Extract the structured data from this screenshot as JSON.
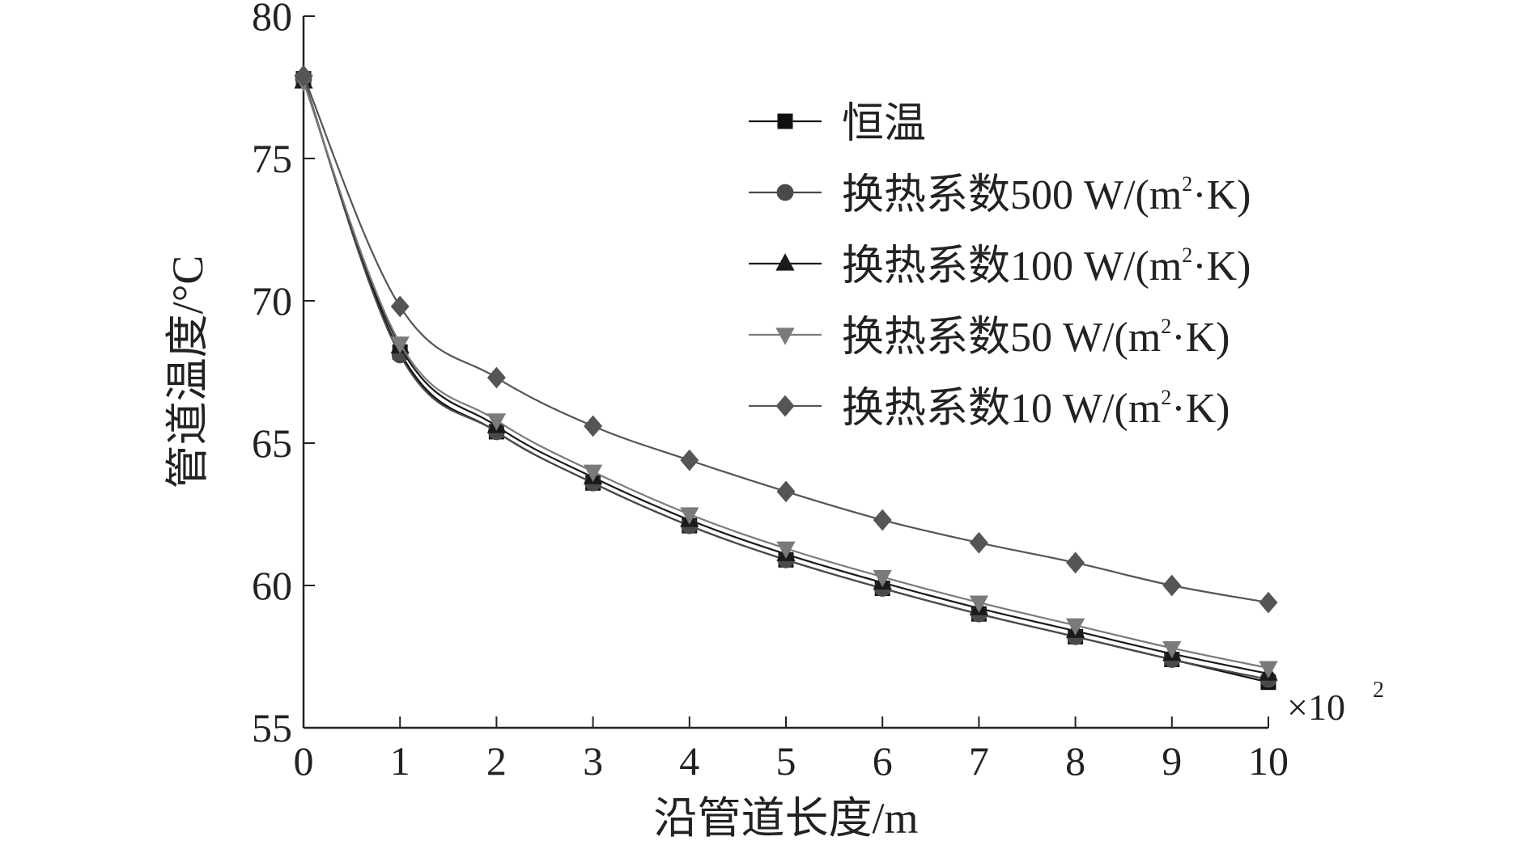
{
  "chart_data": {
    "type": "line",
    "xlabel": "沿管道长度/m",
    "ylabel": "管道温度/°C",
    "x_multiplier": "×10",
    "x_multiplier_exp": "2",
    "xlim": [
      0,
      10
    ],
    "ylim": [
      55,
      80
    ],
    "x_ticks": [
      0,
      1,
      2,
      3,
      4,
      5,
      6,
      7,
      8,
      9,
      10
    ],
    "y_ticks": [
      55,
      60,
      65,
      70,
      75,
      80
    ],
    "x": [
      0,
      1,
      2,
      3,
      4,
      5,
      6,
      7,
      8,
      9,
      10
    ],
    "legend_position": "top-right",
    "series": [
      {
        "name": "恒温",
        "unit": "",
        "marker": "square",
        "color": "#111111",
        "values": [
          77.8,
          68.2,
          65.4,
          63.6,
          62.1,
          60.9,
          59.9,
          59.0,
          58.2,
          57.4,
          56.6
        ]
      },
      {
        "name": "换热系数500 W/(m",
        "unit": "·K)",
        "marker": "circle",
        "color": "#4a4a4a",
        "values": [
          77.8,
          68.1,
          65.4,
          63.6,
          62.1,
          60.9,
          59.9,
          59.0,
          58.2,
          57.4,
          56.7
        ]
      },
      {
        "name": "换热系数100 W/(m",
        "unit": "·K)",
        "marker": "triangle-up",
        "color": "#1a1a1a",
        "values": [
          77.7,
          68.4,
          65.6,
          63.8,
          62.3,
          61.1,
          60.1,
          59.2,
          58.4,
          57.6,
          56.9
        ]
      },
      {
        "name": "换热系数50 W/(m",
        "unit": "·K)",
        "marker": "triangle-down",
        "color": "#7a7a7a",
        "values": [
          77.7,
          68.5,
          65.8,
          64.0,
          62.5,
          61.3,
          60.3,
          59.4,
          58.6,
          57.8,
          57.1
        ]
      },
      {
        "name": "换热系数10 W/(m",
        "unit": "·K)",
        "marker": "diamond",
        "color": "#555555",
        "values": [
          77.9,
          69.8,
          67.3,
          65.6,
          64.4,
          63.3,
          62.3,
          61.5,
          60.8,
          60.0,
          59.4
        ]
      }
    ]
  }
}
